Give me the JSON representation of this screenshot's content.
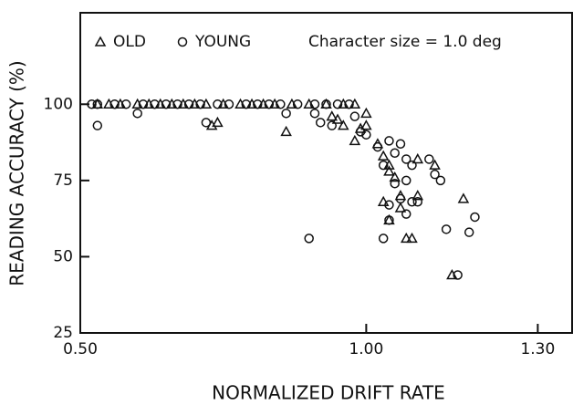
{
  "chart_data": {
    "type": "scatter",
    "xlabel": "NORMALIZED DRIFT RATE",
    "ylabel": "READING ACCURACY (%)",
    "annotation": "Character size = 1.0 deg",
    "xlim": [
      0.5,
      1.36
    ],
    "ylim": [
      25,
      130
    ],
    "xticks": [
      {
        "value": 0.5,
        "label": "0.50"
      },
      {
        "value": 1.0,
        "label": "1.00"
      },
      {
        "value": 1.3,
        "label": "1.30"
      }
    ],
    "yticks": [
      25,
      50,
      75,
      100
    ],
    "legend": "top-left",
    "series": [
      {
        "name": "OLD",
        "marker": "triangle",
        "color": "#111",
        "x": [
          0.53,
          0.55,
          0.57,
          0.6,
          0.62,
          0.64,
          0.66,
          0.68,
          0.7,
          0.72,
          0.75,
          0.78,
          0.8,
          0.82,
          0.84,
          0.87,
          0.9,
          0.93,
          0.96,
          0.98,
          0.73,
          0.74,
          0.86,
          0.94,
          0.95,
          0.96,
          0.98,
          0.99,
          1.0,
          1.0,
          1.02,
          1.03,
          1.04,
          1.04,
          1.05,
          1.03,
          1.04,
          1.06,
          1.07,
          1.08,
          1.09,
          1.09,
          1.12,
          1.15,
          1.17,
          1.06
        ],
        "values": [
          100,
          100,
          100,
          100,
          100,
          100,
          100,
          100,
          100,
          100,
          100,
          100,
          100,
          100,
          100,
          100,
          100,
          100,
          100,
          100,
          93,
          94,
          91,
          96,
          95,
          93,
          88,
          92,
          97,
          93,
          87,
          83,
          80,
          78,
          76,
          68,
          62,
          66,
          56,
          56,
          70,
          82,
          80,
          44,
          69,
          70
        ]
      },
      {
        "name": "YOUNG",
        "marker": "circle",
        "color": "#111",
        "x": [
          0.52,
          0.53,
          0.56,
          0.58,
          0.61,
          0.63,
          0.65,
          0.67,
          0.69,
          0.71,
          0.74,
          0.76,
          0.79,
          0.81,
          0.83,
          0.85,
          0.88,
          0.91,
          0.93,
          0.95,
          0.97,
          0.53,
          0.6,
          0.72,
          0.86,
          0.91,
          0.92,
          0.94,
          0.98,
          0.99,
          1.0,
          1.02,
          1.03,
          1.04,
          1.05,
          1.06,
          1.07,
          1.08,
          1.05,
          1.07,
          1.04,
          1.06,
          1.08,
          1.04,
          1.07,
          1.09,
          1.11,
          1.13,
          1.14,
          1.18,
          1.19,
          1.03,
          0.9,
          1.16,
          1.12
        ],
        "values": [
          100,
          100,
          100,
          100,
          100,
          100,
          100,
          100,
          100,
          100,
          100,
          100,
          100,
          100,
          100,
          100,
          100,
          100,
          100,
          100,
          100,
          93,
          97,
          94,
          97,
          97,
          94,
          93,
          96,
          91,
          90,
          86,
          80,
          88,
          84,
          87,
          82,
          80,
          74,
          75,
          67,
          69,
          68,
          62,
          64,
          68,
          82,
          75,
          59,
          58,
          63,
          56,
          56,
          44,
          77
        ]
      }
    ]
  }
}
